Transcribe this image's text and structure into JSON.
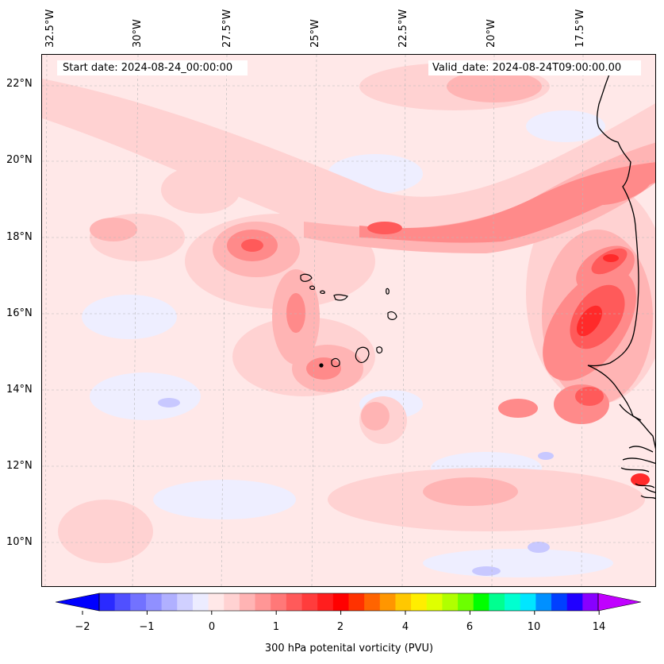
{
  "start_date": "Start date: 2024-08-24_00:00:00",
  "valid_date": "Valid_date: 2024-08-24T09:00:00.00",
  "lon_labels": [
    "32.5°W",
    "30°W",
    "27.5°W",
    "25°W",
    "22.5°W",
    "20°W",
    "17.5°W"
  ],
  "lat_labels": [
    "22°N",
    "20°N",
    "18°N",
    "16°N",
    "14°N",
    "12°N",
    "10°N"
  ],
  "colorbar": {
    "title": "300 hPa potenital vorticity (PVU)",
    "tick_labels": [
      "−2",
      "−1",
      "0",
      "1",
      "2",
      "4",
      "6",
      "10",
      "14"
    ],
    "colors": [
      "#0000ff",
      "#2a2aff",
      "#5050ff",
      "#7272ff",
      "#9090ff",
      "#b0b0ff",
      "#d0d0ff",
      "#ececff",
      "#ffe8e8",
      "#ffd2d2",
      "#ffb4b4",
      "#ff9696",
      "#ff7878",
      "#ff5a5a",
      "#ff3c3c",
      "#ff1e1e",
      "#ff0000",
      "#ff3200",
      "#ff6400",
      "#ff9600",
      "#ffc800",
      "#ffee00",
      "#dfff00",
      "#b0ff00",
      "#6cff00",
      "#00ff00",
      "#00ff90",
      "#00ffd0",
      "#00e6ff",
      "#0090ff",
      "#0040ff",
      "#2000ff",
      "#8800ff",
      "#c000ff"
    ]
  }
}
